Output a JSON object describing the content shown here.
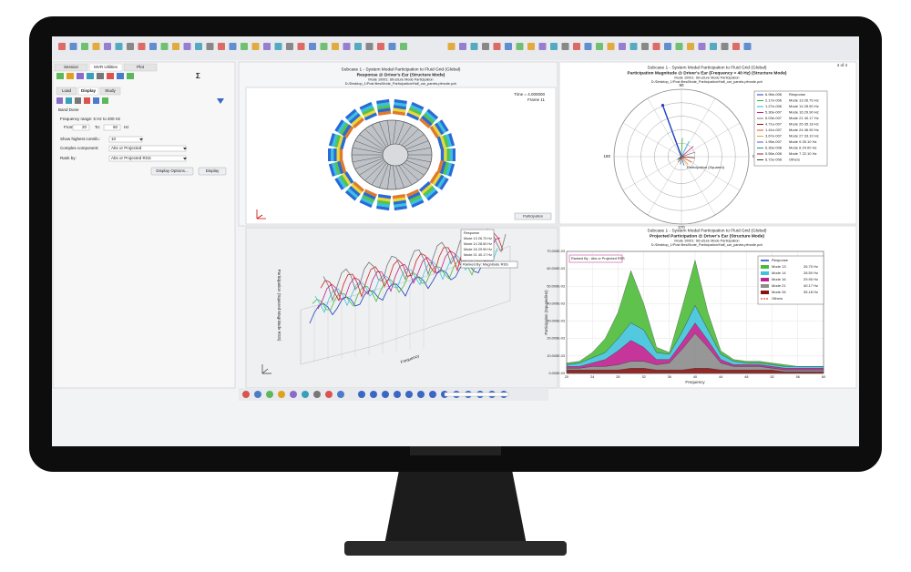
{
  "toolbar": {
    "page": "4 of 4"
  },
  "left_panel": {
    "tabs": [
      "Session",
      "MVR Utilities",
      "Plot"
    ],
    "subtabs": [
      "Load",
      "Display",
      "Study"
    ],
    "section": "Band Done",
    "freq_range": "Frequency range: 5 Hz to 200 Hz",
    "from_label": "From:",
    "from": "20",
    "to_label": "To:",
    "to": "60",
    "unit": "Hz",
    "highest_label": "Show highest contrib.:",
    "highest": "10",
    "complex_label": "Complex component:",
    "complex": "Abs or Projected",
    "rank_label": "Rank by:",
    "rank": "Abs or Projected RSS",
    "buttons": [
      "Display Options...",
      "Display"
    ]
  },
  "model_panel": {
    "title": "Subcase 1 - System Modal Participation to Fluid Grid (Global)",
    "subtitle": "Response @ Driver's Ear (Structure Mode)",
    "note": "Mode 10001: Structure Mode Participation",
    "path": "D:/Desktop_1/Post files/Mode_Participation/Half_car_panels.pfmode.pch",
    "info": [
      "Time = 4.000000",
      "Frame 11"
    ],
    "button": "Participation"
  },
  "polar_panel": {
    "title": "Subcase 1 - System Modal Participation to Fluid Grid (Global)",
    "subtitle": "Participation Magnitude @ Driver's Ear (Frequency = 40 Hz) (Structure Mode)",
    "note": "Mode 10001: Structure Mode Participation",
    "path": "D:/Desktop_1/Post files/Mode_Participation/Half_car_panels.pfmode.pch",
    "angle_labels": [
      "0",
      "90",
      "180",
      "270"
    ],
    "axis_label": "Participation (Squared)",
    "legend": [
      {
        "value": "6.96e-006",
        "name": "Response",
        "color": "#1f3fbf"
      },
      {
        "value": "2.17e-006",
        "name": "Mode 13     26.70 Hz",
        "color": "#3cb043"
      },
      {
        "value": "1.27e-006",
        "name": "Mode 14     28.50 Hz",
        "color": "#2bb7d6"
      },
      {
        "value": "5.30e-007",
        "name": "Mode 16     29.90 Hz",
        "color": "#c0208f"
      },
      {
        "value": "6.03e-007",
        "name": "Mode 21     40.17 Hz",
        "color": "#7a7a7a"
      },
      {
        "value": "4.71e-007",
        "name": "Mode 26     35.18 Hz",
        "color": "#8b1010"
      },
      {
        "value": "1.41e-007",
        "name": "Mode 24     46.90 Hz",
        "color": "#d4552b"
      },
      {
        "value": "3.67e-007",
        "name": "Mode 27     33.10 Hz",
        "color": "#e0a020"
      },
      {
        "value": "1.95e-007",
        "name": "Mode 9      25.10 Hz",
        "color": "#5a5ad8"
      },
      {
        "value": "6.30e-008",
        "name": "Mode 8      24.00 Hz",
        "color": "#1f8f7f"
      },
      {
        "value": "5.56e-008",
        "name": "Mode 7      22.10 Hz",
        "color": "#9c2a2a"
      },
      {
        "value": "6.72e-008",
        "name": "Others",
        "color": "#404040"
      }
    ]
  },
  "plot3d_panel": {
    "axis_y": "Participation (Squared Magnitude RSS)",
    "axis_x": "Frequency",
    "ranked": "Ranked By: Magnitude RSS",
    "legend": [
      "Response",
      "Mode 13  26.70 Hz",
      "Mode 14  28.50 Hz",
      "Mode 16  29.90 Hz",
      "Mode 21  40.17 Hz"
    ]
  },
  "area_chart": {
    "type": "area",
    "title": "Subcase 1 - System Modal Participation to Fluid Grid (Global)",
    "subtitle": "Projected Participation @ Driver's Ear (Structure Mode)",
    "note": "Mode 10001: Structure Mode Participation",
    "path": "D:/Desktop_1/Post files/Mode_Participation/Half_car_panels.pfmode.pch",
    "annotation": "Ranked By - Abs or Projected RSS",
    "xlabel": "Frequency",
    "ylabel": "Participation (Squared/Hz)",
    "x": [
      20,
      22,
      24,
      26,
      28,
      30,
      32,
      34,
      36,
      38,
      40,
      42,
      44,
      46,
      48,
      50,
      52,
      54,
      56,
      58,
      60
    ],
    "xlim": [
      20,
      60
    ],
    "xticks": [
      20,
      24,
      28,
      32,
      36,
      40,
      44,
      48,
      52,
      56,
      60
    ],
    "ylim": [
      0,
      0.07
    ],
    "yticks": [
      {
        "value": 0,
        "label": "0.000E-03"
      },
      {
        "value": 0.01,
        "label": "10.000E-03"
      },
      {
        "value": 0.02,
        "label": "20.000E-03"
      },
      {
        "value": 0.03,
        "label": "30.000E-03"
      },
      {
        "value": 0.04,
        "label": "40.000E-03"
      },
      {
        "value": 0.05,
        "label": "50.000E-03"
      },
      {
        "value": 0.06,
        "label": "60.000E-03"
      },
      {
        "value": 0.07,
        "label": "70.000E-03"
      }
    ],
    "response_name": "Response",
    "response_color": "#1f3fbf",
    "series": [
      {
        "name": "Mode 26",
        "freq": "35.18 Hz",
        "color": "#8b1010",
        "values": [
          0.002,
          0.002,
          0.002,
          0.002,
          0.002,
          0.003,
          0.003,
          0.002,
          0.002,
          0.002,
          0.003,
          0.003,
          0.002,
          0.002,
          0.002,
          0.002,
          0.002,
          0.001,
          0.001,
          0.001,
          0.001
        ]
      },
      {
        "name": "Mode 21",
        "freq": "40.17 Hz",
        "color": "#8c8c8c",
        "values": [
          0.001,
          0.001,
          0.002,
          0.002,
          0.003,
          0.004,
          0.004,
          0.003,
          0.004,
          0.012,
          0.02,
          0.012,
          0.004,
          0.002,
          0.002,
          0.002,
          0.001,
          0.001,
          0.001,
          0.001,
          0.001
        ]
      },
      {
        "name": "Mode 16",
        "freq": "29.90 Hz",
        "color": "#c0208f",
        "values": [
          0.001,
          0.001,
          0.002,
          0.004,
          0.008,
          0.012,
          0.008,
          0.003,
          0.002,
          0.004,
          0.006,
          0.004,
          0.002,
          0.001,
          0.001,
          0.001,
          0.001,
          0.001,
          0.001,
          0.001,
          0.001
        ]
      },
      {
        "name": "Mode 14",
        "freq": "28.50 Hz",
        "color": "#3fc3dc",
        "values": [
          0.001,
          0.002,
          0.003,
          0.004,
          0.007,
          0.01,
          0.01,
          0.004,
          0.003,
          0.006,
          0.01,
          0.006,
          0.003,
          0.002,
          0.001,
          0.001,
          0.001,
          0.001,
          0.001,
          0.001,
          0.001
        ]
      },
      {
        "name": "Mode 13",
        "freq": "26.70 Hz",
        "color": "#4cbb3a",
        "values": [
          0.001,
          0.001,
          0.003,
          0.008,
          0.015,
          0.03,
          0.015,
          0.003,
          0.001,
          0.014,
          0.026,
          0.01,
          0.002,
          0.001,
          0.001,
          0.001,
          0.001,
          0.001,
          0,
          0,
          0
        ]
      }
    ],
    "others_name": "Others"
  }
}
